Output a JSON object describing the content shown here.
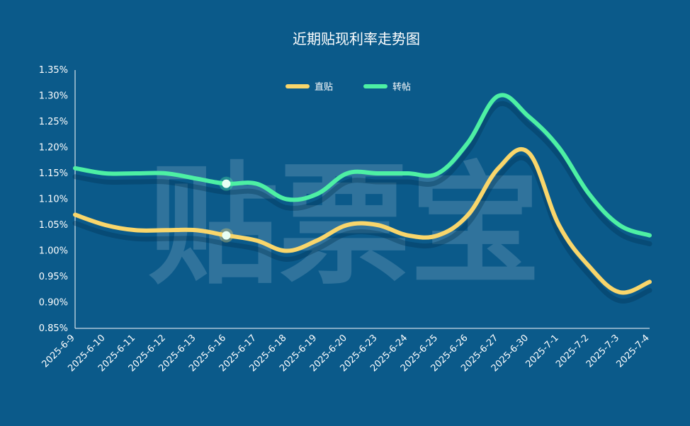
{
  "chart_data": {
    "type": "line",
    "title": "近期贴现利率走势图",
    "watermark": "贴票宝",
    "categories": [
      "2025-6-9",
      "2025-6-10",
      "2025-6-11",
      "2025-6-12",
      "2025-6-13",
      "2025-6-16",
      "2025-6-17",
      "2025-6-18",
      "2025-6-19",
      "2025-6-20",
      "2025-6-23",
      "2025-6-24",
      "2025-6-25",
      "2025-6-26",
      "2025-6-27",
      "2025-6-30",
      "2025-7-1",
      "2025-7-2",
      "2025-7-3",
      "2025-7-4"
    ],
    "y_ticks": [
      "0.85%",
      "0.90%",
      "0.95%",
      "1.00%",
      "1.05%",
      "1.10%",
      "1.15%",
      "1.20%",
      "1.25%",
      "1.30%",
      "1.35%"
    ],
    "ylim": [
      0.85,
      1.35
    ],
    "highlight_index": 5,
    "legend_position": "top-center",
    "series": [
      {
        "name": "直贴",
        "color": "#f9d66b",
        "values": [
          1.07,
          1.05,
          1.04,
          1.04,
          1.04,
          1.03,
          1.02,
          1.0,
          1.02,
          1.05,
          1.05,
          1.03,
          1.03,
          1.07,
          1.16,
          1.19,
          1.05,
          0.97,
          0.92,
          0.94
        ]
      },
      {
        "name": "转帖",
        "color": "#4df0a4",
        "values": [
          1.16,
          1.15,
          1.15,
          1.15,
          1.14,
          1.13,
          1.13,
          1.1,
          1.11,
          1.15,
          1.15,
          1.15,
          1.15,
          1.21,
          1.3,
          1.26,
          1.2,
          1.11,
          1.05,
          1.03
        ]
      }
    ]
  }
}
